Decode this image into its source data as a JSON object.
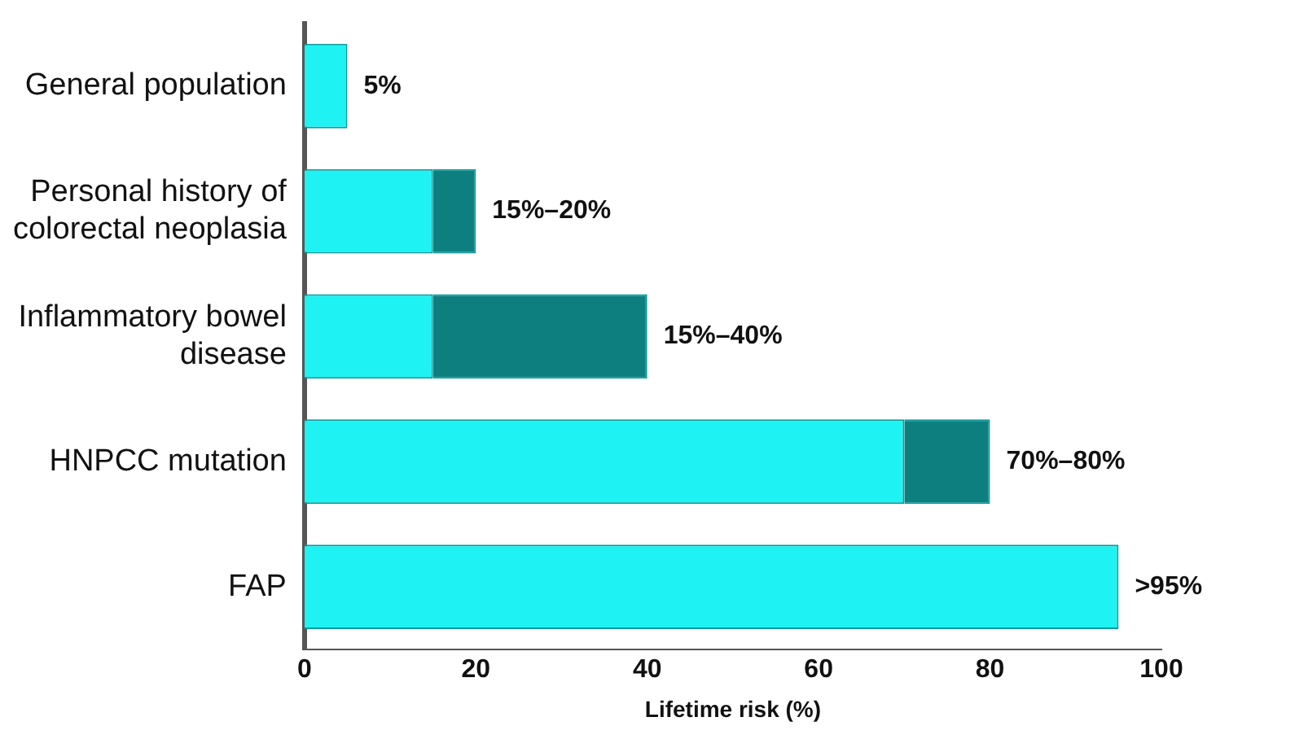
{
  "chart_data": {
    "type": "bar",
    "orientation": "horizontal",
    "xlabel": "Lifetime risk (%)",
    "categories": [
      "General population",
      "Personal history of colorectal neoplasia",
      "Inflammatory bowel disease",
      "HNPCC mutation",
      "FAP"
    ],
    "stacked": true,
    "series": [
      {
        "color": "#1ef2f2",
        "values": [
          5,
          15,
          15,
          70,
          95
        ]
      },
      {
        "color": "#0e7f7f",
        "values": [
          null,
          5,
          25,
          10,
          null
        ]
      }
    ],
    "totals": [
      "5%",
      "15%–20%",
      "15%–40%",
      "70%–80%",
      ">95%"
    ],
    "xlim": [
      0,
      100
    ],
    "xticks": [
      0,
      20,
      40,
      60,
      80,
      100
    ],
    "grid": false
  }
}
